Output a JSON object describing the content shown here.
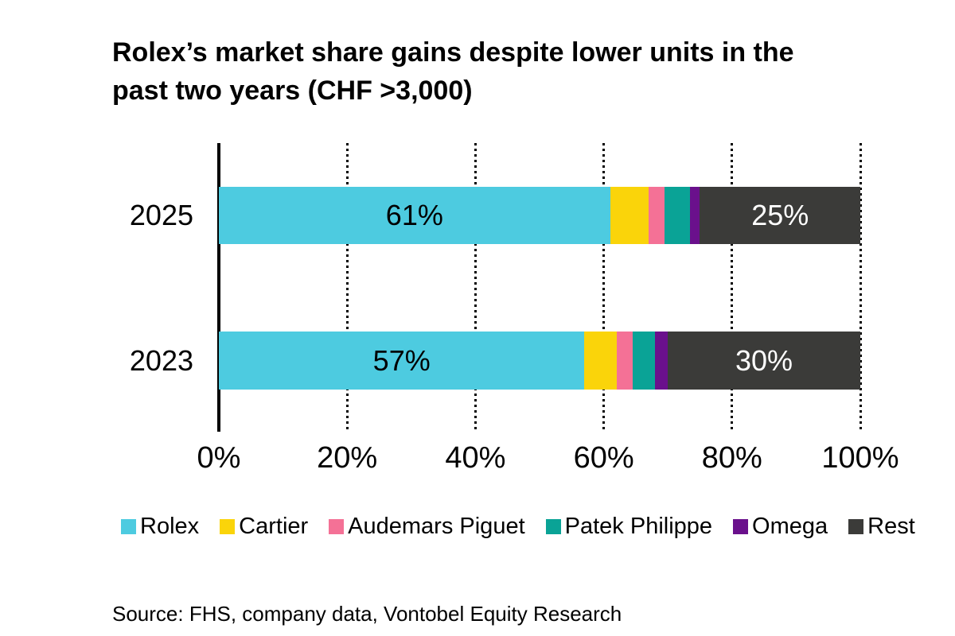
{
  "header": {
    "title_lines": [
      "Rolex’s market share gains despite lower units in the",
      "past two years (CHF >3,000)"
    ]
  },
  "footer": {
    "source": "Source: FHS, company data, Vontobel Equity Research"
  },
  "chart_data": {
    "type": "bar",
    "orientation": "horizontal",
    "stacked": true,
    "title": "Rolex’s market share gains despite lower units in the past two years (CHF >3,000)",
    "categories": [
      "2025",
      "2023"
    ],
    "series": [
      {
        "name": "Rolex",
        "color": "#4DCBE0",
        "values": [
          61,
          57
        ],
        "data_labels": [
          "61%",
          "57%"
        ],
        "label_color": "#000000"
      },
      {
        "name": "Cartier",
        "color": "#FAD40A",
        "values": [
          6,
          5
        ]
      },
      {
        "name": "Audemars Piguet",
        "color": "#F47196",
        "values": [
          2.5,
          2.5
        ]
      },
      {
        "name": "Patek Philippe",
        "color": "#0AA396",
        "values": [
          4,
          3.5
        ]
      },
      {
        "name": "Omega",
        "color": "#6A108C",
        "values": [
          1.5,
          2
        ]
      },
      {
        "name": "Rest",
        "color": "#3B3B39",
        "values": [
          25,
          30
        ],
        "data_labels": [
          "25%",
          "30%"
        ],
        "label_color": "#FFFFFF"
      }
    ],
    "xlim": [
      0,
      100
    ],
    "x_ticks": [
      {
        "value": 0,
        "label": "0%"
      },
      {
        "value": 20,
        "label": "20%"
      },
      {
        "value": 40,
        "label": "40%"
      },
      {
        "value": 60,
        "label": "60%"
      },
      {
        "value": 80,
        "label": "80%"
      },
      {
        "value": 100,
        "label": "100%"
      }
    ],
    "grid": "vertical dotted gridlines every 20%",
    "axis_color": "#000000",
    "legend_position": "bottom"
  }
}
